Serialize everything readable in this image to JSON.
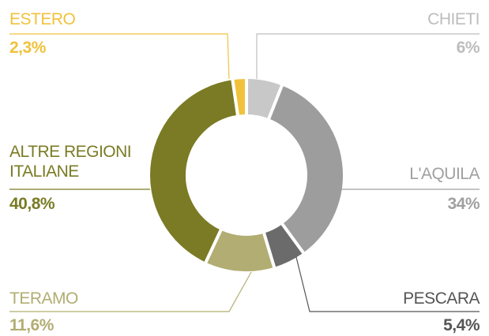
{
  "chart_data": {
    "type": "pie",
    "categories": [
      "CHIETI",
      "L'AQUILA",
      "PESCARA",
      "TERAMO",
      "ALTRE REGIONI ITALIANE",
      "ESTERO"
    ],
    "values": [
      6,
      34,
      5.4,
      11.6,
      40.8,
      2.3
    ],
    "value_labels": [
      "6%",
      "34%",
      "5,4%",
      "11,6%",
      "40,8%",
      "2,3%"
    ],
    "colors": [
      "#c8c8c8",
      "#9d9d9d",
      "#6b6b6b",
      "#b2ad72",
      "#7a7b24",
      "#f0c23c"
    ],
    "label_colors": [
      "#bdbdbd",
      "#a0a0a0",
      "#555555",
      "#b2ad72",
      "#7a7b24",
      "#f0c23c"
    ]
  }
}
